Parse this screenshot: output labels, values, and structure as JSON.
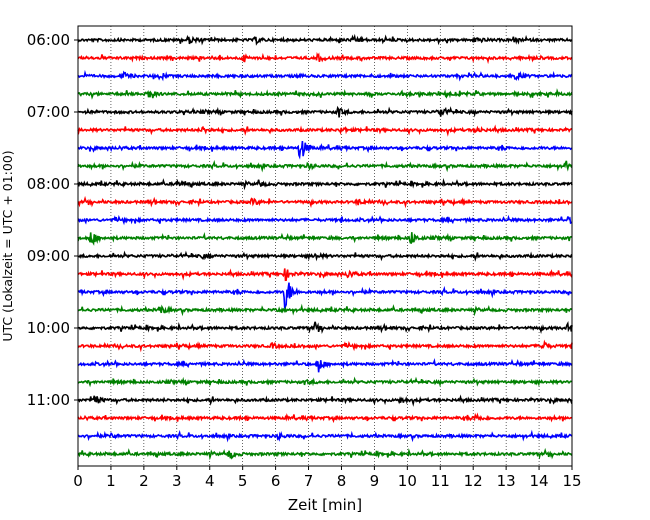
{
  "chart_data": {
    "type": "line",
    "title": "",
    "xlabel": "Zeit  [min]",
    "ylabel": "UTC (Lokalzeit = UTC + 01:00)",
    "xlim": [
      0,
      15
    ],
    "x_ticks": [
      0,
      1,
      2,
      3,
      4,
      5,
      6,
      7,
      8,
      9,
      10,
      11,
      12,
      13,
      14,
      15
    ],
    "y_tick_labels": [
      "06:00",
      "07:00",
      "08:00",
      "09:00",
      "10:00",
      "11:00"
    ],
    "vertical_grid": true,
    "trace_colors": [
      "#000000",
      "#ff0000",
      "#0000ff",
      "#008000"
    ],
    "traces": [
      {
        "start": "06:00",
        "events": [
          {
            "x": 3.4,
            "amp": 0.35
          },
          {
            "x": 5.4,
            "amp": 0.3
          },
          {
            "x": 8.5,
            "amp": 0.25
          },
          {
            "x": 12.1,
            "amp": 0.3
          }
        ]
      },
      {
        "start": "06:15",
        "events": [
          {
            "x": 7.3,
            "amp": 0.4
          },
          {
            "x": 5.0,
            "amp": 0.3
          }
        ]
      },
      {
        "start": "06:30",
        "events": [
          {
            "x": 1.4,
            "amp": 0.3
          },
          {
            "x": 13.3,
            "amp": 0.3
          }
        ]
      },
      {
        "start": "06:45",
        "events": [
          {
            "x": 2.1,
            "amp": 0.55
          },
          {
            "x": 11.2,
            "amp": 0.25
          }
        ]
      },
      {
        "start": "07:00",
        "events": [
          {
            "x": 7.9,
            "amp": 0.4
          },
          {
            "x": 11.0,
            "amp": 0.6
          }
        ]
      },
      {
        "start": "07:15",
        "events": [
          {
            "x": 3.8,
            "amp": 0.3
          },
          {
            "x": 8.0,
            "amp": 0.3
          },
          {
            "x": 12.1,
            "amp": 0.3
          }
        ]
      },
      {
        "start": "07:30",
        "events": [
          {
            "x": 6.75,
            "amp": 1.5
          }
        ]
      },
      {
        "start": "07:45",
        "events": [
          {
            "x": 7.0,
            "amp": 0.3
          },
          {
            "x": 14.8,
            "amp": 0.3
          }
        ]
      },
      {
        "start": "08:00",
        "events": [
          {
            "x": 3.0,
            "amp": 0.3
          },
          {
            "x": 5.5,
            "amp": 0.3
          }
        ]
      },
      {
        "start": "08:15",
        "events": [
          {
            "x": 5.3,
            "amp": 0.35
          },
          {
            "x": 8.5,
            "amp": 0.25
          }
        ]
      },
      {
        "start": "08:30",
        "events": [
          {
            "x": 14.9,
            "amp": 0.3
          }
        ]
      },
      {
        "start": "08:45",
        "events": [
          {
            "x": 0.4,
            "amp": 0.9
          },
          {
            "x": 10.1,
            "amp": 0.8
          }
        ]
      },
      {
        "start": "09:00",
        "events": [
          {
            "x": 7.2,
            "amp": 0.3
          },
          {
            "x": 3.8,
            "amp": 0.2
          }
        ]
      },
      {
        "start": "09:15",
        "events": [
          {
            "x": 6.3,
            "amp": 0.6
          },
          {
            "x": 8.2,
            "amp": 0.35
          }
        ]
      },
      {
        "start": "09:30",
        "events": [
          {
            "x": 6.3,
            "amp": 2.2
          }
        ]
      },
      {
        "start": "09:45",
        "events": [
          {
            "x": 2.5,
            "amp": 0.45
          },
          {
            "x": 6.0,
            "amp": 0.2
          }
        ]
      },
      {
        "start": "10:00",
        "events": [
          {
            "x": 7.2,
            "amp": 0.3
          },
          {
            "x": 14.9,
            "amp": 0.55
          }
        ]
      },
      {
        "start": "10:15",
        "events": [
          {
            "x": 5.9,
            "amp": 0.25
          },
          {
            "x": 14.1,
            "amp": 0.6
          }
        ]
      },
      {
        "start": "10:30",
        "events": [
          {
            "x": 7.3,
            "amp": 0.85
          }
        ]
      },
      {
        "start": "10:45",
        "events": [
          {
            "x": 7.0,
            "amp": 0.2
          }
        ]
      },
      {
        "start": "11:00",
        "events": [
          {
            "x": 0.5,
            "amp": 0.6
          },
          {
            "x": 9.8,
            "amp": 0.3
          }
        ]
      },
      {
        "start": "11:15",
        "events": [
          {
            "x": 12.1,
            "amp": 0.4
          }
        ]
      },
      {
        "start": "11:30",
        "events": [
          {
            "x": 6.1,
            "amp": 0.3
          },
          {
            "x": 1.0,
            "amp": 0.2
          }
        ]
      },
      {
        "start": "11:45",
        "events": [
          {
            "x": 4.6,
            "amp": 0.5
          }
        ]
      }
    ]
  }
}
